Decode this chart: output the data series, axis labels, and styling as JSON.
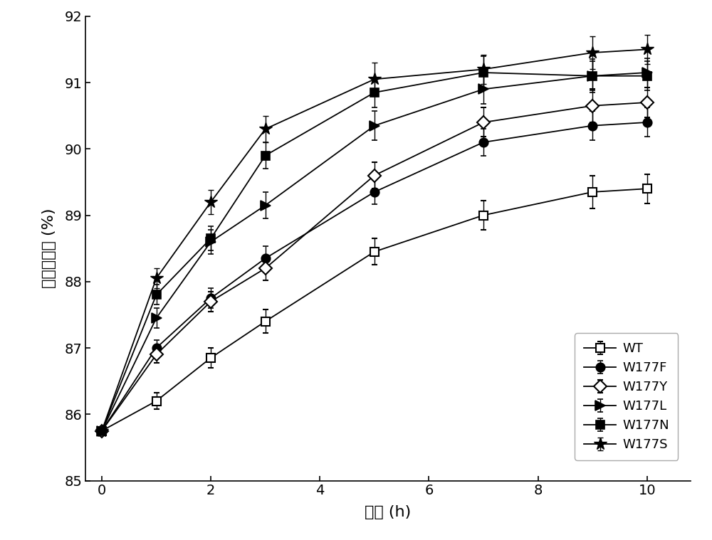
{
  "x": [
    0,
    1,
    2,
    3,
    5,
    7,
    9,
    10
  ],
  "series": {
    "WT": {
      "y": [
        85.75,
        86.2,
        86.85,
        87.4,
        88.45,
        89.0,
        89.35,
        89.4
      ],
      "yerr": [
        0.0,
        0.12,
        0.15,
        0.18,
        0.2,
        0.22,
        0.25,
        0.22
      ]
    },
    "W177F": {
      "y": [
        85.75,
        87.0,
        87.75,
        88.35,
        89.35,
        90.1,
        90.35,
        90.4
      ],
      "yerr": [
        0.0,
        0.12,
        0.15,
        0.18,
        0.18,
        0.2,
        0.22,
        0.22
      ]
    },
    "W177Y": {
      "y": [
        85.75,
        86.9,
        87.7,
        88.2,
        89.6,
        90.4,
        90.65,
        90.7
      ],
      "yerr": [
        0.0,
        0.12,
        0.15,
        0.18,
        0.2,
        0.22,
        0.25,
        0.22
      ]
    },
    "W177L": {
      "y": [
        85.75,
        87.45,
        88.6,
        89.15,
        90.35,
        90.9,
        91.1,
        91.15
      ],
      "yerr": [
        0.0,
        0.15,
        0.18,
        0.2,
        0.22,
        0.22,
        0.25,
        0.22
      ]
    },
    "W177N": {
      "y": [
        85.75,
        87.8,
        88.65,
        89.9,
        90.85,
        91.15,
        91.1,
        91.1
      ],
      "yerr": [
        0.0,
        0.15,
        0.18,
        0.2,
        0.22,
        0.25,
        0.22,
        0.22
      ]
    },
    "W177S": {
      "y": [
        85.75,
        88.05,
        89.2,
        90.3,
        91.05,
        91.2,
        91.45,
        91.5
      ],
      "yerr": [
        0.0,
        0.15,
        0.18,
        0.2,
        0.25,
        0.22,
        0.25,
        0.22
      ]
    }
  },
  "xlabel": "时间 (h)",
  "ylabel": "芒芽糖含量 (%)",
  "xlim": [
    -0.3,
    10.8
  ],
  "ylim": [
    85,
    92
  ],
  "xticks": [
    0,
    2,
    4,
    6,
    8,
    10
  ],
  "yticks": [
    85,
    86,
    87,
    88,
    89,
    90,
    91,
    92
  ],
  "line_color": "#000000",
  "background_color": "#ffffff",
  "legend_order": [
    "WT",
    "W177F",
    "W177Y",
    "W177L",
    "W177N",
    "W177S"
  ]
}
